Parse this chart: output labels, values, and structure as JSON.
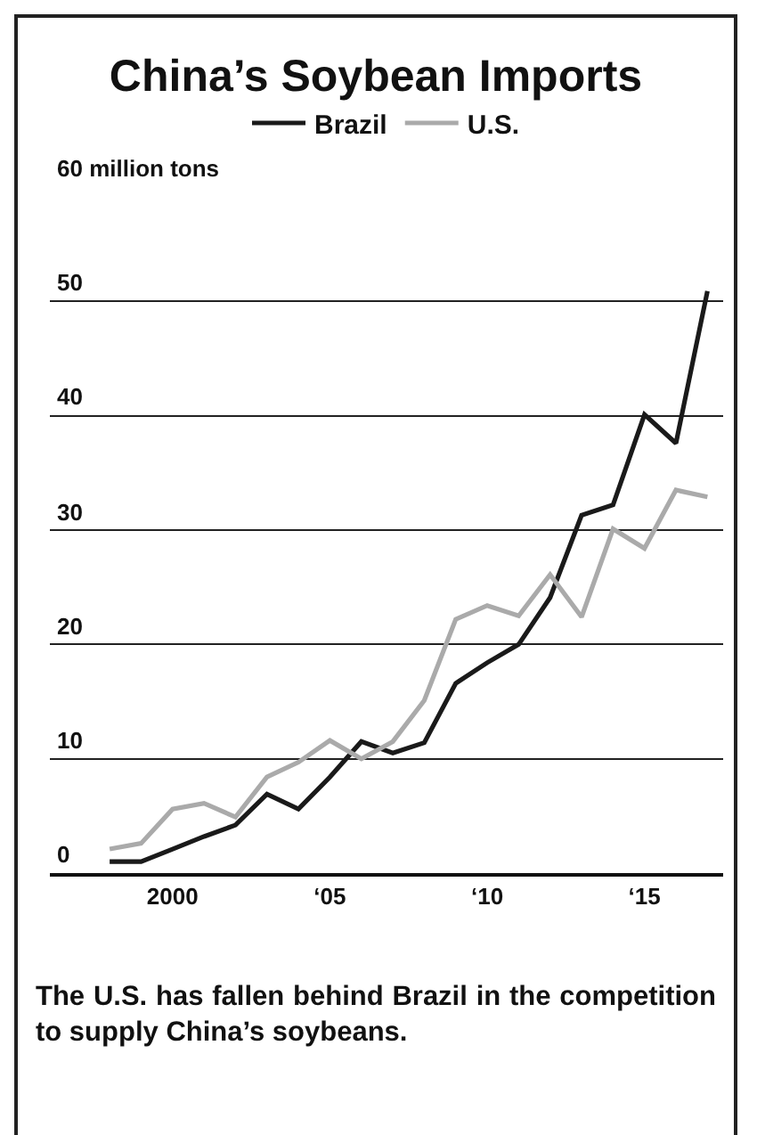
{
  "chart_data": {
    "type": "line",
    "title": "China’s Soybean Imports",
    "categories": [
      null,
      null,
      "2000",
      null,
      null,
      null,
      null,
      "‘05",
      null,
      null,
      null,
      null,
      "‘10",
      null,
      null,
      null,
      null,
      "‘15",
      null,
      null
    ],
    "series": [
      {
        "name": "Brazil",
        "color": "#1a1a1a",
        "values": [
          1.0,
          1.0,
          2.1,
          3.2,
          4.2,
          6.9,
          5.6,
          8.4,
          11.5,
          10.5,
          11.4,
          16.6,
          18.4,
          20.0,
          24.1,
          31.3,
          32.2,
          40.1,
          37.6,
          50.9
        ]
      },
      {
        "name": "U.S.",
        "color": "#aaaaaa",
        "values": [
          2.1,
          2.6,
          5.6,
          6.1,
          4.9,
          8.4,
          9.7,
          11.6,
          10.0,
          11.5,
          15.1,
          22.2,
          23.4,
          22.5,
          26.1,
          22.4,
          30.1,
          28.4,
          33.5,
          32.9
        ]
      }
    ],
    "ylim": [
      0,
      60
    ],
    "yticks": [
      0,
      10,
      20,
      30,
      40,
      50,
      {
        "value": 60,
        "label": "60 million tons"
      }
    ],
    "grid": "y",
    "legend": "top",
    "marker": "none",
    "line_style": "solid",
    "annotations": [
      "The U.S. has fallen behind Brazil in the competition to supply China’s soybeans."
    ]
  }
}
